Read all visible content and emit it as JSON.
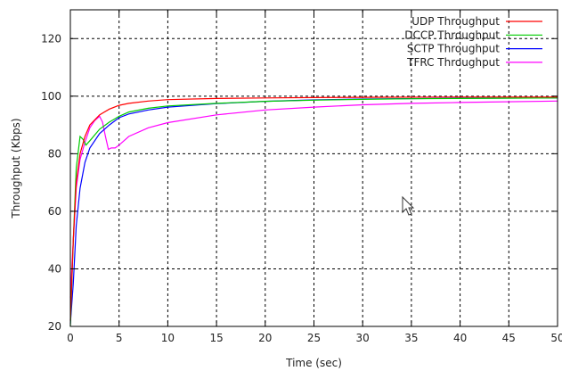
{
  "chart_data": {
    "type": "line",
    "title": "",
    "xlabel": "Time (sec)",
    "ylabel": "Throughput (Kbps)",
    "xlim": [
      0,
      50
    ],
    "ylim": [
      20,
      130
    ],
    "x_ticks": [
      0,
      5,
      10,
      15,
      20,
      25,
      30,
      35,
      40,
      45,
      50
    ],
    "x_tick_labels": [
      "0",
      "5",
      "10",
      "15",
      "20",
      "25",
      "30",
      "35",
      "40",
      "45",
      "50"
    ],
    "y_ticks": [
      20,
      40,
      60,
      80,
      100,
      120
    ],
    "y_tick_labels": [
      "20",
      "40",
      "60",
      "80",
      "100",
      "120"
    ],
    "grid": true,
    "legend_position": "top-right",
    "series": [
      {
        "name": "UDP Throughput",
        "color": "#ff0000",
        "points": [
          [
            0,
            22
          ],
          [
            0.3,
            50
          ],
          [
            0.6,
            70
          ],
          [
            1,
            80
          ],
          [
            1.5,
            86
          ],
          [
            2,
            90
          ],
          [
            3,
            93.5
          ],
          [
            4,
            95.5
          ],
          [
            5,
            96.8
          ],
          [
            6,
            97.5
          ],
          [
            8,
            98.3
          ],
          [
            10,
            98.8
          ],
          [
            15,
            99.2
          ],
          [
            20,
            99.4
          ],
          [
            25,
            99.5
          ],
          [
            30,
            99.6
          ],
          [
            40,
            99.7
          ],
          [
            50,
            99.7
          ]
        ]
      },
      {
        "name": "DCCP Throughput",
        "color": "#00cc00",
        "points": [
          [
            0,
            20
          ],
          [
            0.3,
            50
          ],
          [
            0.6,
            75
          ],
          [
            1,
            86
          ],
          [
            1.3,
            85
          ],
          [
            1.6,
            83
          ],
          [
            2,
            84.5
          ],
          [
            3,
            88.5
          ],
          [
            4,
            91
          ],
          [
            5,
            93
          ],
          [
            6,
            94.5
          ],
          [
            8,
            95.8
          ],
          [
            10,
            96.6
          ],
          [
            15,
            97.5
          ],
          [
            20,
            98.2
          ],
          [
            25,
            98.6
          ],
          [
            30,
            98.9
          ],
          [
            35,
            99.1
          ],
          [
            40,
            99.2
          ],
          [
            50,
            99.4
          ]
        ]
      },
      {
        "name": "SCTP Throughput",
        "color": "#0000ff",
        "points": [
          [
            0,
            21
          ],
          [
            0.3,
            35
          ],
          [
            0.6,
            55
          ],
          [
            1,
            68
          ],
          [
            1.5,
            77
          ],
          [
            2,
            82
          ],
          [
            3,
            87
          ],
          [
            4,
            90
          ],
          [
            5,
            92.5
          ],
          [
            6,
            93.8
          ],
          [
            8,
            95.2
          ],
          [
            10,
            96.2
          ],
          [
            15,
            97.4
          ],
          [
            20,
            98.2
          ],
          [
            25,
            98.7
          ],
          [
            30,
            99
          ],
          [
            40,
            99.3
          ],
          [
            50,
            99.4
          ]
        ]
      },
      {
        "name": "TFRC Throughput",
        "color": "#ff00ff",
        "points": [
          [
            0,
            30
          ],
          [
            0.3,
            50
          ],
          [
            0.6,
            68
          ],
          [
            1,
            78
          ],
          [
            1.5,
            84
          ],
          [
            2,
            89
          ],
          [
            2.5,
            91.5
          ],
          [
            3,
            93
          ],
          [
            3.3,
            91
          ],
          [
            3.6,
            86
          ],
          [
            3.9,
            81.5
          ],
          [
            4.2,
            82
          ],
          [
            4.6,
            82
          ],
          [
            5,
            83
          ],
          [
            6,
            86
          ],
          [
            8,
            89
          ],
          [
            10,
            90.8
          ],
          [
            15,
            93.5
          ],
          [
            20,
            95.2
          ],
          [
            25,
            96.2
          ],
          [
            30,
            97
          ],
          [
            35,
            97.5
          ],
          [
            40,
            97.8
          ],
          [
            50,
            98.3
          ]
        ]
      }
    ]
  }
}
